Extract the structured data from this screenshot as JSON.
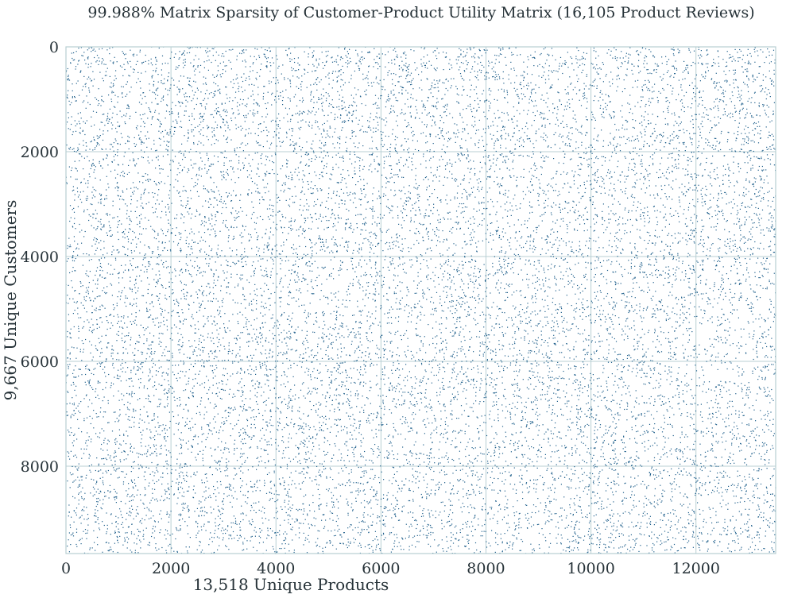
{
  "chart_data": {
    "type": "scatter",
    "title": "99.988% Matrix Sparsity of Customer-Product Utility Matrix (16,105 Product Reviews)",
    "xlabel": "13,518 Unique Products",
    "ylabel": "9,667 Unique Customers",
    "xlim": [
      0,
      13518
    ],
    "ylim": [
      9667,
      0
    ],
    "y_axis_inverted": true,
    "xticks": [
      0,
      2000,
      4000,
      6000,
      8000,
      10000,
      12000
    ],
    "yticks": [
      0,
      2000,
      4000,
      6000,
      8000
    ],
    "grid": true,
    "marker_color": "#1f5f8b",
    "grid_color": "#b8cfd3",
    "series": [
      {
        "point_count": 16105,
        "distribution": "uniform random across the full matrix (spy plot of nonzero entries)"
      }
    ]
  }
}
